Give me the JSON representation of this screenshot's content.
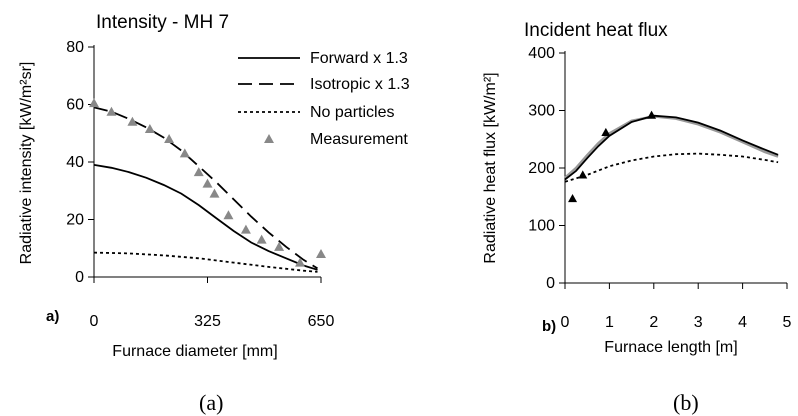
{
  "chart_data": [
    {
      "type": "line",
      "panel_letter": "a)",
      "caption": "(a)",
      "title": "Intensity - MH 7",
      "xlabel": "Furnace diameter [mm]",
      "ylabel": "Radiative intensity [kW/m²sr]",
      "xlim": [
        0,
        650
      ],
      "ylim": [
        0,
        80
      ],
      "xticks": [
        0,
        325,
        650
      ],
      "yticks": [
        0,
        20,
        40,
        60,
        80
      ],
      "legend": "top-right",
      "series": [
        {
          "name": "Forward x 1.3",
          "style": "solid",
          "color": "#000000",
          "x": [
            0,
            50,
            100,
            150,
            200,
            250,
            300,
            350,
            400,
            450,
            500,
            550,
            600,
            640
          ],
          "y": [
            39,
            38,
            36.5,
            34.5,
            32,
            29,
            25,
            20.5,
            16,
            12,
            9,
            6.5,
            4,
            2.5
          ]
        },
        {
          "name": "Isotropic x 1.3",
          "style": "dashed",
          "color": "#000000",
          "x": [
            0,
            50,
            100,
            150,
            200,
            250,
            300,
            350,
            400,
            450,
            500,
            550,
            600,
            640
          ],
          "y": [
            59,
            57.5,
            55,
            52,
            48.5,
            44,
            38.5,
            33,
            27,
            21,
            15.5,
            10.5,
            6,
            3
          ]
        },
        {
          "name": "No particles",
          "style": "dotted",
          "color": "#000000",
          "x": [
            0,
            100,
            200,
            300,
            400,
            500,
            600,
            640
          ],
          "y": [
            8.5,
            8.2,
            7.5,
            6.5,
            5,
            3.5,
            2.2,
            1.8
          ]
        },
        {
          "name": "Measurement",
          "style": "markers",
          "marker": "triangle",
          "color": "#888888",
          "x": [
            0,
            50,
            110,
            160,
            215,
            260,
            300,
            325,
            345,
            385,
            435,
            480,
            530,
            590,
            650
          ],
          "y": [
            60.5,
            57.5,
            54,
            51.5,
            48,
            43,
            36.5,
            32.5,
            29,
            21.5,
            16.5,
            13,
            10.5,
            5,
            8
          ]
        }
      ]
    },
    {
      "type": "line",
      "panel_letter": "b)",
      "caption": "(b)",
      "title": "Incident heat flux",
      "xlabel": "Furnace length [m]",
      "ylabel": "Radiative heat flux [kW/m²]",
      "xlim": [
        0,
        5
      ],
      "ylim": [
        0,
        400
      ],
      "xticks": [
        0,
        1,
        2,
        3,
        4,
        5
      ],
      "yticks": [
        0,
        100,
        200,
        300,
        400
      ],
      "series": [
        {
          "style": "solid-gray",
          "color": "#999999",
          "x": [
            0,
            0.25,
            0.5,
            0.75,
            1,
            1.5,
            2,
            2.5,
            3,
            3.5,
            4,
            4.5,
            4.8
          ],
          "y": [
            183,
            200,
            222,
            243,
            260,
            282,
            290,
            286,
            276,
            262,
            245,
            228,
            220
          ]
        },
        {
          "style": "solid",
          "color": "#000000",
          "x": [
            0,
            0.25,
            0.5,
            0.75,
            1,
            1.5,
            2,
            2.5,
            3,
            3.5,
            4,
            4.5,
            4.8
          ],
          "y": [
            180,
            195,
            217,
            238,
            256,
            280,
            291,
            288,
            279,
            265,
            248,
            232,
            223
          ]
        },
        {
          "style": "dotted",
          "color": "#000000",
          "x": [
            0,
            0.5,
            1,
            1.5,
            2,
            2.5,
            3,
            3.5,
            4,
            4.5,
            4.8
          ],
          "y": [
            176,
            188,
            203,
            213,
            220,
            224,
            225,
            223,
            220,
            214,
            210
          ]
        },
        {
          "style": "markers",
          "marker": "triangle",
          "color": "#000000",
          "x": [
            0.17,
            0.4,
            0.92,
            1.95
          ],
          "y": [
            147,
            188,
            262,
            292
          ]
        }
      ]
    }
  ]
}
